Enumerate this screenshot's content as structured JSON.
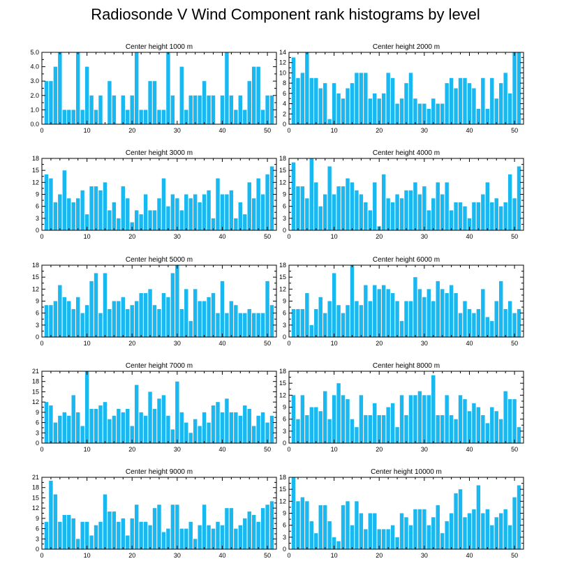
{
  "title": "Radiosonde V Wind Component rank histograms by level",
  "chart_data": [
    {
      "type": "bar",
      "title": "Center height 1000 m",
      "xlim": [
        0,
        52
      ],
      "ylim": [
        0,
        5
      ],
      "xticks": [
        0,
        10,
        20,
        30,
        40,
        50
      ],
      "yticks": [
        0,
        1,
        2,
        3,
        4,
        5
      ],
      "yticklabels": [
        "0.0",
        "1.0",
        "2.0",
        "3.0",
        "4.0",
        "5.0"
      ],
      "values": [
        3,
        3,
        4,
        5,
        1,
        1,
        1,
        5,
        1,
        4,
        2,
        1,
        2,
        0,
        3,
        2,
        0,
        2,
        1,
        2,
        5,
        1,
        1,
        3,
        3,
        1,
        1,
        5,
        2,
        0,
        4,
        1,
        2,
        2,
        2,
        3,
        2,
        2,
        0,
        2,
        5,
        2,
        1,
        2,
        1,
        3,
        4,
        4,
        1,
        2,
        2
      ]
    },
    {
      "type": "bar",
      "title": "Center height 2000 m",
      "xlim": [
        0,
        52
      ],
      "ylim": [
        0,
        14
      ],
      "xticks": [
        0,
        10,
        20,
        30,
        40,
        50
      ],
      "yticks": [
        0,
        2,
        4,
        6,
        8,
        10,
        12,
        14
      ],
      "yticklabels": [
        "0",
        "2",
        "4",
        "6",
        "8",
        "10",
        "12",
        "14"
      ],
      "values": [
        13,
        9,
        10,
        14,
        9,
        9,
        7,
        8,
        1,
        8,
        6,
        5,
        7,
        8,
        10,
        10,
        10,
        5,
        6,
        5,
        6,
        10,
        9,
        4,
        5,
        8,
        10,
        5,
        4,
        4,
        3,
        5,
        4,
        4,
        8,
        9,
        7,
        9,
        9,
        8,
        7,
        3,
        9,
        3,
        9,
        5,
        8,
        10,
        6,
        14,
        14
      ]
    },
    {
      "type": "bar",
      "title": "Center height 3000 m",
      "xlim": [
        0,
        52
      ],
      "ylim": [
        0,
        18
      ],
      "xticks": [
        0,
        10,
        20,
        30,
        40,
        50
      ],
      "yticks": [
        0,
        3,
        6,
        9,
        12,
        15,
        18
      ],
      "yticklabels": [
        "0",
        "3",
        "6",
        "9",
        "12",
        "15",
        "18"
      ],
      "values": [
        14,
        13,
        7,
        9,
        15,
        8,
        7,
        8,
        10,
        4,
        11,
        11,
        10,
        12,
        5,
        7,
        3,
        11,
        8,
        2,
        5,
        4,
        9,
        5,
        5,
        8,
        13,
        6,
        9,
        8,
        5,
        9,
        8,
        9,
        7,
        9,
        10,
        3,
        13,
        9,
        9,
        10,
        3,
        7,
        4,
        12,
        8,
        13,
        9,
        14,
        16
      ]
    },
    {
      "type": "bar",
      "title": "Center height 4000 m",
      "xlim": [
        0,
        52
      ],
      "ylim": [
        0,
        18
      ],
      "xticks": [
        0,
        10,
        20,
        30,
        40,
        50
      ],
      "yticks": [
        0,
        3,
        6,
        9,
        12,
        15,
        18
      ],
      "yticklabels": [
        "0",
        "3",
        "6",
        "9",
        "12",
        "15",
        "18"
      ],
      "values": [
        17,
        11,
        11,
        8,
        18,
        12,
        6,
        9,
        16,
        9,
        11,
        11,
        13,
        12,
        10,
        9,
        7,
        5,
        12,
        1,
        14,
        8,
        7,
        9,
        8,
        10,
        10,
        12,
        9,
        11,
        5,
        8,
        12,
        9,
        12,
        5,
        7,
        7,
        6,
        3,
        7,
        7,
        9,
        12,
        7,
        8,
        6,
        7,
        14,
        8,
        16
      ]
    },
    {
      "type": "bar",
      "title": "Center height 5000 m",
      "xlim": [
        0,
        52
      ],
      "ylim": [
        0,
        18
      ],
      "xticks": [
        0,
        10,
        20,
        30,
        40,
        50
      ],
      "yticks": [
        0,
        3,
        6,
        9,
        12,
        15,
        18
      ],
      "yticklabels": [
        "0",
        "3",
        "6",
        "9",
        "12",
        "15",
        "18"
      ],
      "values": [
        8,
        8,
        9,
        13,
        10,
        9,
        7,
        10,
        6,
        8,
        14,
        16,
        6,
        16,
        7,
        9,
        9,
        10,
        7,
        8,
        9,
        11,
        11,
        12,
        8,
        7,
        11,
        10,
        16,
        18,
        7,
        12,
        4,
        12,
        9,
        9,
        10,
        11,
        6,
        14,
        6,
        9,
        8,
        6,
        6,
        7,
        6,
        6,
        6,
        14,
        8
      ]
    },
    {
      "type": "bar",
      "title": "Center height 6000 m",
      "xlim": [
        0,
        52
      ],
      "ylim": [
        0,
        18
      ],
      "xticks": [
        0,
        10,
        20,
        30,
        40,
        50
      ],
      "yticks": [
        0,
        3,
        6,
        9,
        12,
        15,
        18
      ],
      "yticklabels": [
        "0",
        "3",
        "6",
        "9",
        "12",
        "15",
        "18"
      ],
      "values": [
        7,
        7,
        7,
        11,
        3,
        7,
        10,
        6,
        9,
        16,
        8,
        6,
        8,
        18,
        9,
        8,
        13,
        9,
        13,
        12,
        13,
        12,
        11,
        9,
        4,
        9,
        9,
        15,
        12,
        10,
        12,
        9,
        14,
        12,
        11,
        13,
        11,
        6,
        9,
        7,
        6,
        7,
        12,
        5,
        4,
        9,
        14,
        7,
        9,
        6,
        7
      ]
    },
    {
      "type": "bar",
      "title": "Center height 7000 m",
      "xlim": [
        0,
        52
      ],
      "ylim": [
        0,
        21
      ],
      "xticks": [
        0,
        10,
        20,
        30,
        40,
        50
      ],
      "yticks": [
        0,
        3,
        6,
        9,
        12,
        15,
        18,
        21
      ],
      "yticklabels": [
        "0",
        "3",
        "6",
        "9",
        "12",
        "15",
        "18",
        "21"
      ],
      "values": [
        12,
        11,
        6,
        8,
        9,
        8,
        14,
        9,
        5,
        21,
        10,
        10,
        11,
        12,
        7,
        8,
        10,
        9,
        10,
        5,
        17,
        9,
        8,
        15,
        10,
        13,
        14,
        8,
        4,
        18,
        9,
        6,
        3,
        7,
        5,
        9,
        6,
        11,
        12,
        9,
        13,
        9,
        9,
        8,
        11,
        10,
        5,
        8,
        9,
        6,
        8
      ]
    },
    {
      "type": "bar",
      "title": "Center height 8000 m",
      "xlim": [
        0,
        52
      ],
      "ylim": [
        0,
        18
      ],
      "xticks": [
        0,
        10,
        20,
        30,
        40,
        50
      ],
      "yticks": [
        0,
        3,
        6,
        9,
        12,
        15,
        18
      ],
      "yticklabels": [
        "0",
        "3",
        "6",
        "9",
        "12",
        "15",
        "18"
      ],
      "values": [
        12,
        6,
        12,
        7,
        9,
        9,
        8,
        13,
        6,
        12,
        15,
        12,
        11,
        6,
        4,
        12,
        7,
        7,
        10,
        7,
        7,
        9,
        10,
        4,
        12,
        7,
        12,
        12,
        13,
        12,
        12,
        17,
        7,
        7,
        12,
        7,
        6,
        12,
        11,
        8,
        10,
        9,
        7,
        5,
        9,
        8,
        6,
        13,
        11,
        11,
        4
      ]
    },
    {
      "type": "bar",
      "title": "Center height 9000 m",
      "xlim": [
        0,
        52
      ],
      "ylim": [
        0,
        21
      ],
      "xticks": [
        0,
        10,
        20,
        30,
        40,
        50
      ],
      "yticks": [
        0,
        3,
        6,
        9,
        12,
        15,
        18,
        21
      ],
      "yticklabels": [
        "0",
        "3",
        "6",
        "9",
        "12",
        "15",
        "18",
        "21"
      ],
      "values": [
        8,
        20,
        16,
        8,
        10,
        10,
        9,
        3,
        8,
        8,
        4,
        7,
        8,
        16,
        11,
        11,
        8,
        9,
        4,
        9,
        13,
        8,
        8,
        7,
        12,
        13,
        5,
        6,
        13,
        13,
        6,
        6,
        8,
        3,
        7,
        13,
        7,
        6,
        8,
        7,
        12,
        12,
        6,
        7,
        9,
        11,
        10,
        8,
        12,
        13,
        14
      ]
    },
    {
      "type": "bar",
      "title": "Center height 10000 m",
      "xlim": [
        0,
        52
      ],
      "ylim": [
        0,
        18
      ],
      "xticks": [
        0,
        10,
        20,
        30,
        40,
        50
      ],
      "yticks": [
        0,
        3,
        6,
        9,
        12,
        15,
        18
      ],
      "yticklabels": [
        "0",
        "3",
        "6",
        "9",
        "12",
        "15",
        "18"
      ],
      "values": [
        18,
        12,
        13,
        12,
        7,
        4,
        11,
        11,
        7,
        3,
        2,
        11,
        12,
        6,
        12,
        9,
        5,
        9,
        9,
        5,
        5,
        5,
        6,
        3,
        9,
        8,
        6,
        10,
        10,
        10,
        6,
        8,
        11,
        4,
        7,
        9,
        14,
        15,
        8,
        9,
        10,
        16,
        9,
        10,
        6,
        8,
        9,
        10,
        6,
        13,
        16
      ]
    }
  ]
}
